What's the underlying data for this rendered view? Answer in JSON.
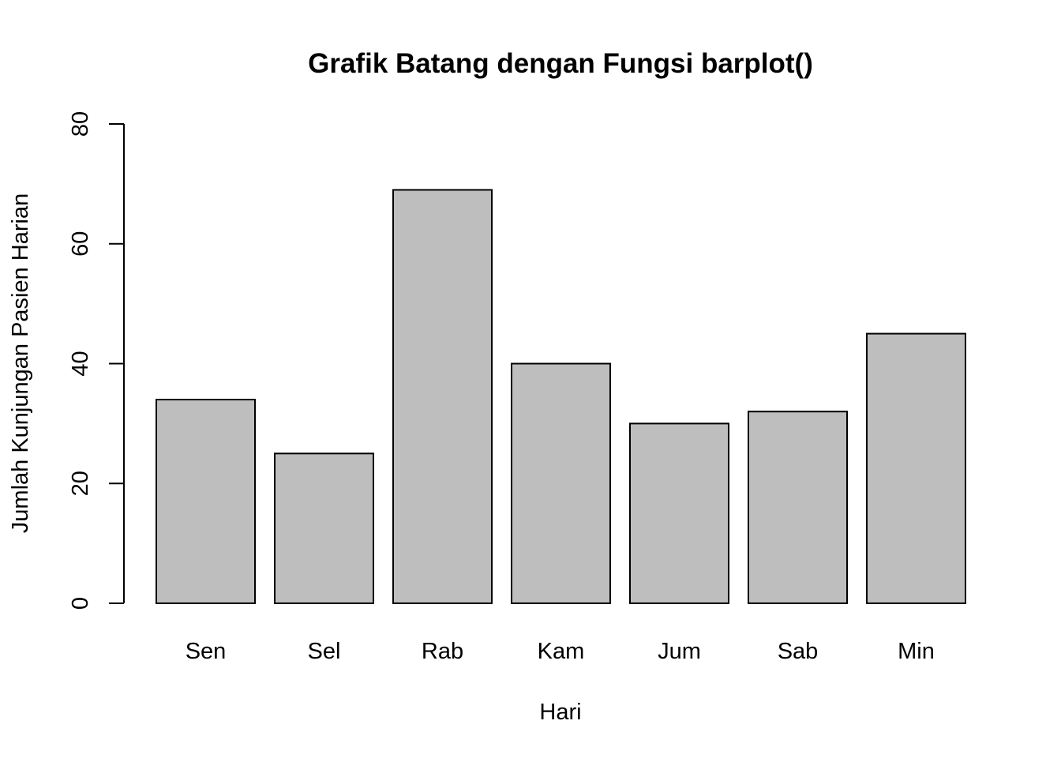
{
  "chart_data": {
    "type": "bar",
    "title": "Grafik Batang dengan Fungsi barplot()",
    "xlabel": "Hari",
    "ylabel": "Jumlah Kunjungan Pasien Harian",
    "categories": [
      "Sen",
      "Sel",
      "Rab",
      "Kam",
      "Jum",
      "Sab",
      "Min"
    ],
    "values": [
      34,
      25,
      69,
      40,
      30,
      32,
      45
    ],
    "yticks": [
      "0",
      "20",
      "40",
      "60",
      "80"
    ],
    "ylim": [
      0,
      80
    ],
    "grid": false,
    "legend": "none",
    "bar_color": "#bebebe",
    "bar_border_color": "#000000"
  }
}
